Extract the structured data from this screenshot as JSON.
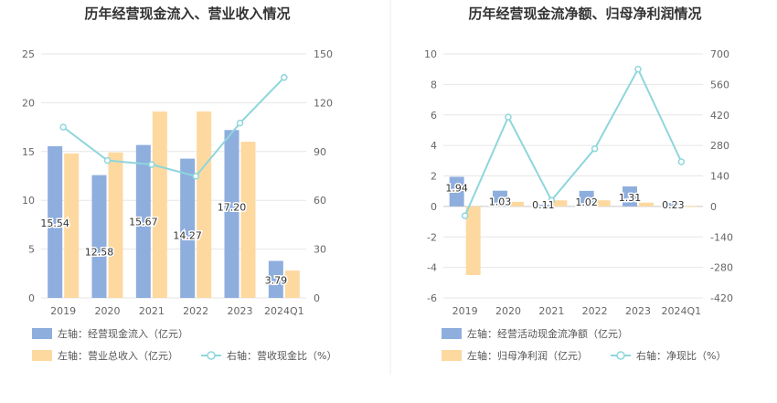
{
  "colors": {
    "bar_primary": "#8eaede",
    "bar_secondary": "#fdd9a0",
    "line": "#8ed6dc",
    "grid": "#e6e6e6",
    "axis_text": "#666666",
    "title_text": "#333333"
  },
  "chart_data": [
    {
      "type": "bar",
      "title": "历年经营现金流入、营业收入情况",
      "categories": [
        "2019",
        "2020",
        "2021",
        "2022",
        "2023",
        "2024Q1"
      ],
      "ylim_left": [
        0,
        25
      ],
      "yticks_left": [
        "0",
        "5",
        "10",
        "15",
        "20",
        "25"
      ],
      "ylim_right": [
        0,
        150
      ],
      "yticks_right": [
        "0",
        "30",
        "60",
        "90",
        "120",
        "150"
      ],
      "grid": true,
      "legend_position": "bottom",
      "series": [
        {
          "name": "左轴：经营现金流入（亿元）",
          "axis": "left",
          "kind": "bar",
          "values": [
            15.54,
            12.58,
            15.67,
            14.27,
            17.2,
            3.79
          ],
          "labels": [
            "15.54",
            "12.58",
            "15.67",
            "14.27",
            "17.20",
            "3.79"
          ]
        },
        {
          "name": "左轴：营业总收入（亿元）",
          "axis": "left",
          "kind": "bar",
          "values": [
            14.8,
            14.9,
            19.1,
            19.1,
            16.0,
            2.8
          ]
        },
        {
          "name": "右轴：营收现金比（%）",
          "axis": "right",
          "kind": "line",
          "values": [
            105,
            84.5,
            82,
            74.8,
            107.5,
            135.5
          ]
        }
      ]
    },
    {
      "type": "bar",
      "title": "历年经营现金流净额、归母净利润情况",
      "categories": [
        "2019",
        "2020",
        "2021",
        "2022",
        "2023",
        "2024Q1"
      ],
      "ylim_left": [
        -6,
        10
      ],
      "yticks_left": [
        "-6",
        "-4",
        "-2",
        "0",
        "2",
        "4",
        "6",
        "8",
        "10"
      ],
      "ylim_right": [
        -420,
        700
      ],
      "yticks_right": [
        "-420",
        "-280",
        "-140",
        "0",
        "140",
        "280",
        "420",
        "560",
        "700"
      ],
      "grid": true,
      "legend_position": "bottom",
      "series": [
        {
          "name": "左轴：经营活动现金流净额（亿元）",
          "axis": "left",
          "kind": "bar",
          "values": [
            1.94,
            1.03,
            0.11,
            1.02,
            1.31,
            0.23
          ],
          "labels": [
            "1.94",
            "1.03",
            "0.11",
            "1.02",
            "1.31",
            "0.23"
          ]
        },
        {
          "name": "左轴：归母净利润（亿元）",
          "axis": "left",
          "kind": "bar",
          "values": [
            -4.5,
            0.3,
            0.4,
            0.4,
            0.25,
            0.03
          ]
        },
        {
          "name": "右轴：净现比（%）",
          "axis": "right",
          "kind": "line",
          "values": [
            -43,
            410,
            28,
            265,
            630,
            205
          ]
        }
      ]
    }
  ]
}
